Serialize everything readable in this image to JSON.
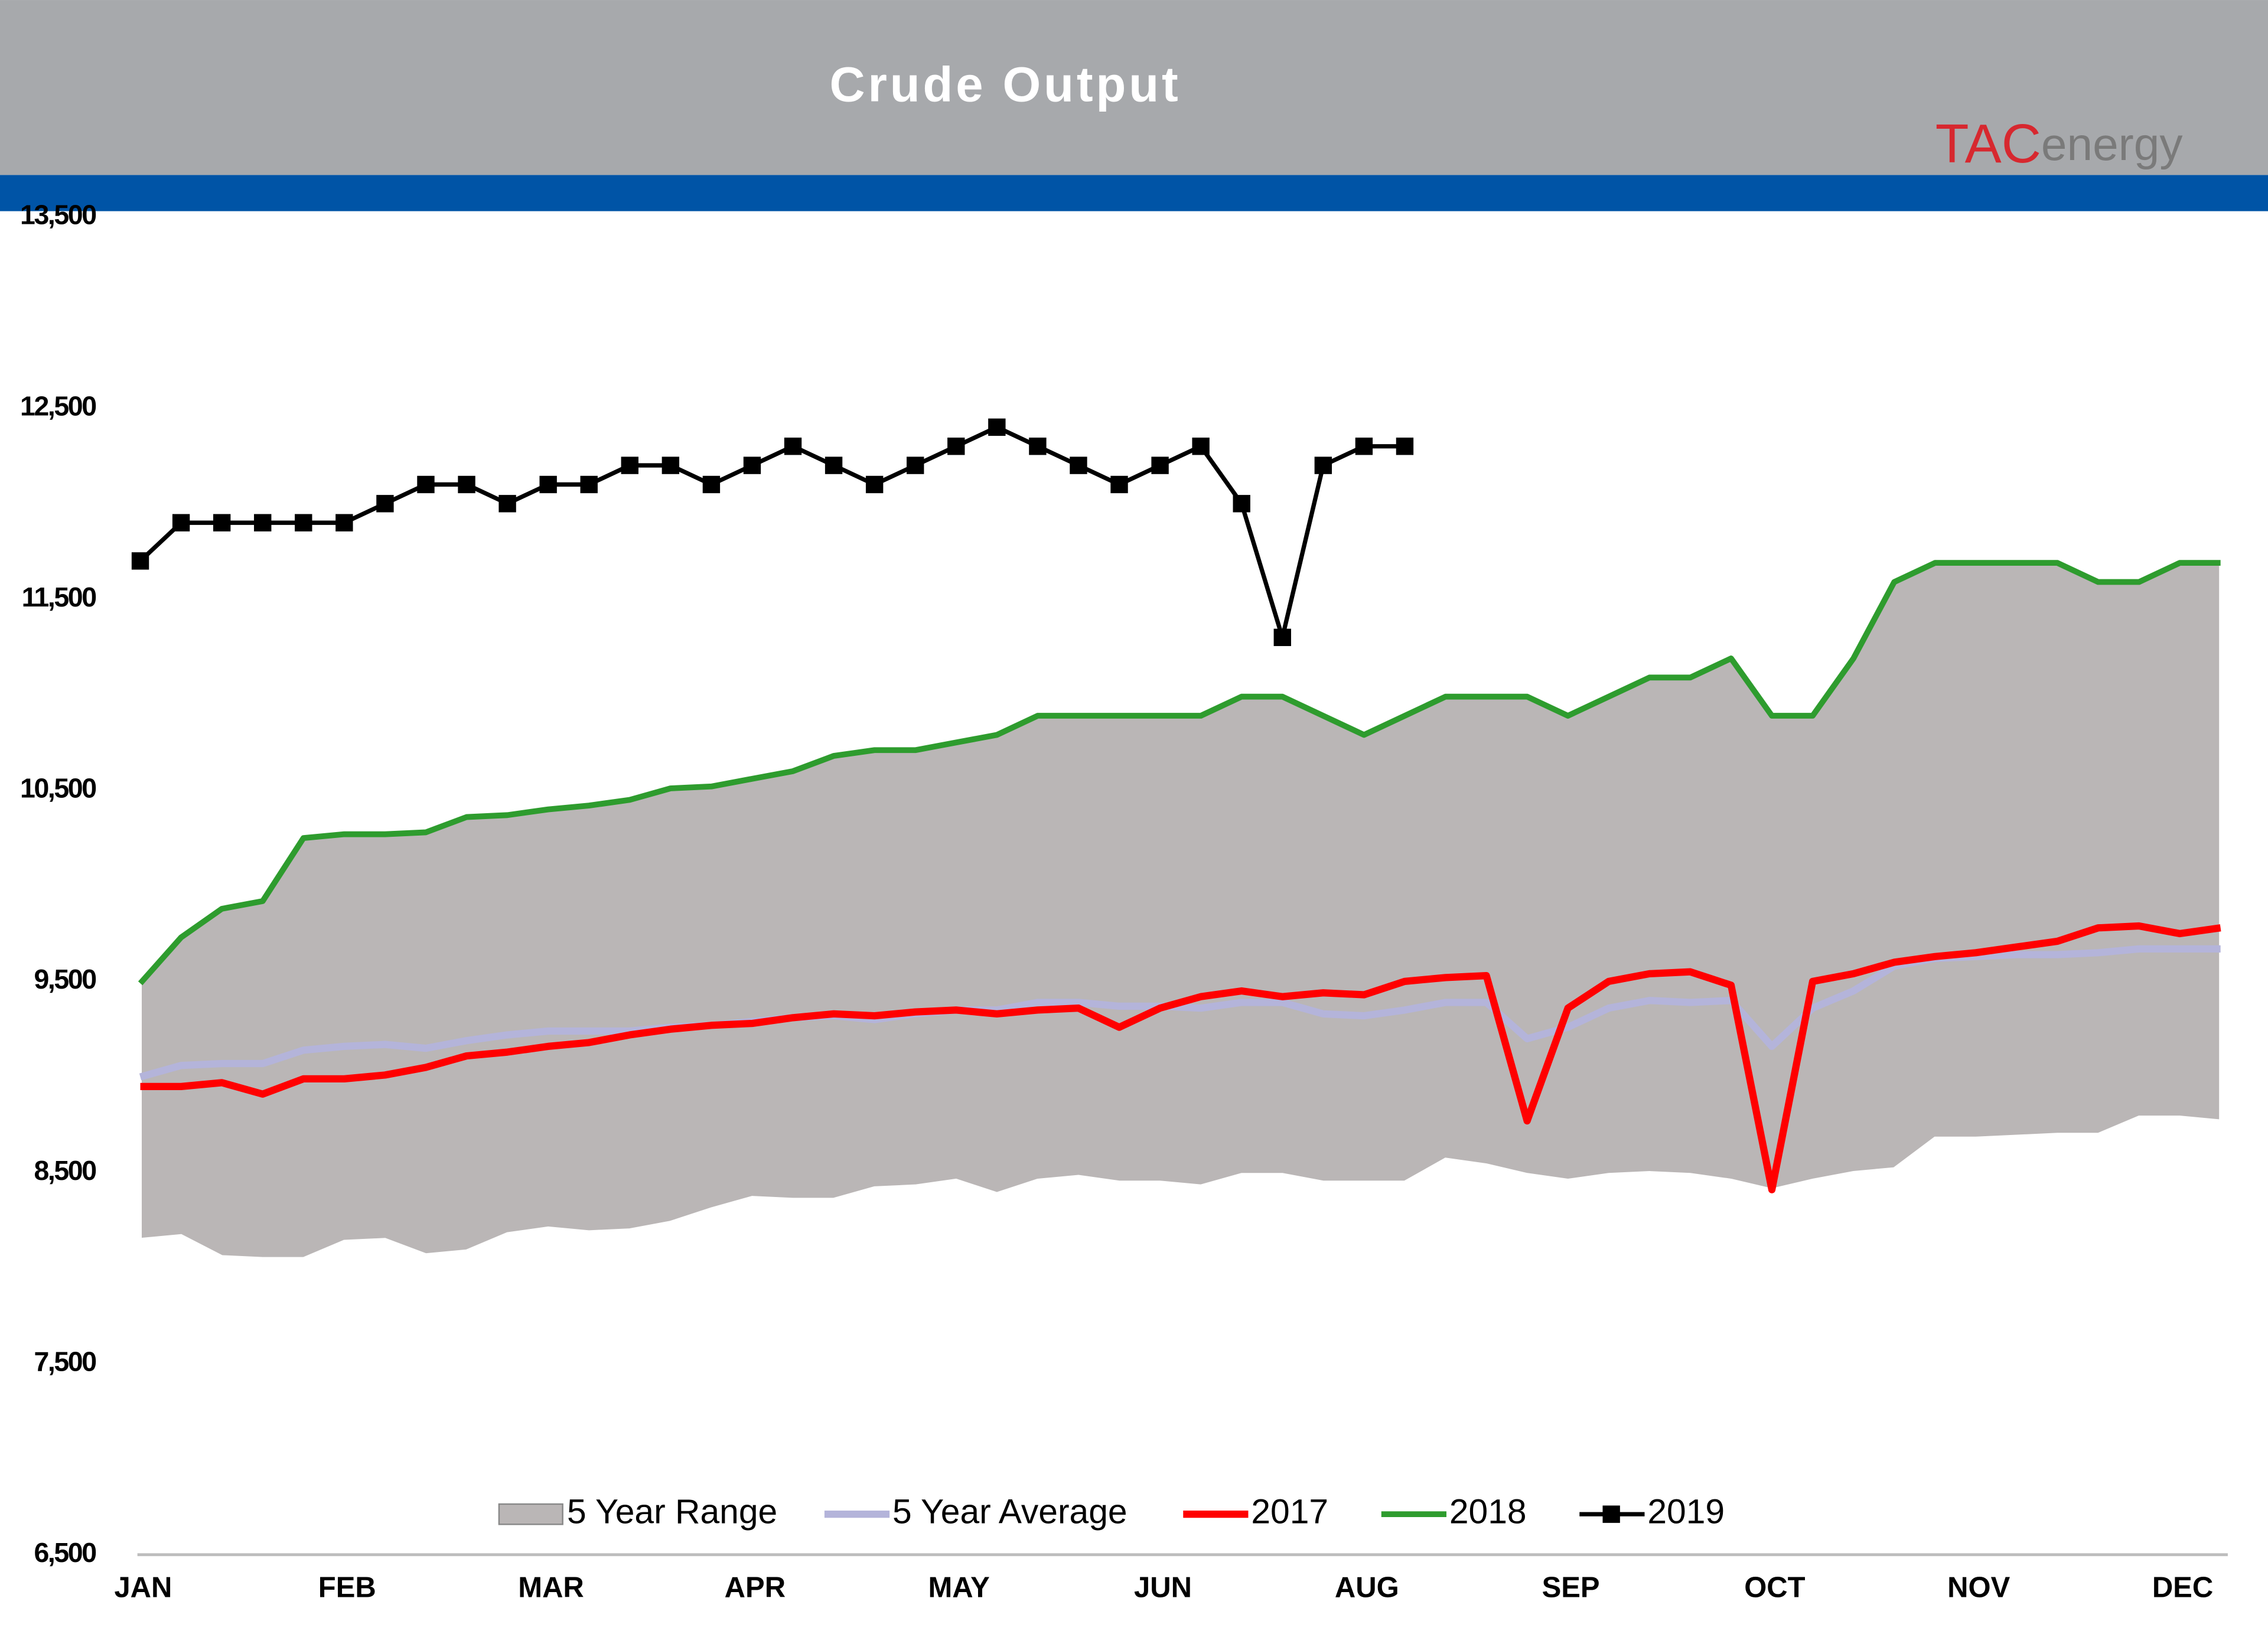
{
  "chart_data": {
    "type": "line",
    "title": "Crude Output",
    "logo_mark": "TAC",
    "logo_text": "energy",
    "categories": [
      "JAN",
      null,
      null,
      null,
      null,
      "FEB",
      null,
      null,
      null,
      null,
      "MAR",
      null,
      null,
      null,
      null,
      "APR",
      null,
      null,
      null,
      null,
      "MAY",
      null,
      null,
      null,
      null,
      "JUN",
      null,
      null,
      null,
      null,
      "AUG",
      null,
      null,
      null,
      null,
      "SEP",
      null,
      null,
      null,
      null,
      "OCT",
      null,
      null,
      null,
      null,
      "NOV",
      null,
      null,
      null,
      null,
      "DEC",
      null
    ],
    "ylim": [
      6500,
      13500
    ],
    "yticks": [
      {
        "value": 6500,
        "label": "6,500"
      },
      {
        "value": 7500,
        "label": "7,500"
      },
      {
        "value": 8500,
        "label": "8,500"
      },
      {
        "value": 9500,
        "label": "9,500"
      },
      {
        "value": 10500,
        "label": "10,500"
      },
      {
        "value": 11500,
        "label": "11,500"
      },
      {
        "value": 12500,
        "label": "12,500"
      },
      {
        "value": 13500,
        "label": "13,500"
      }
    ],
    "series": [
      {
        "name": "5 Year Range",
        "color": "#bab6b6",
        "kind": "range",
        "low": [
          8150,
          8170,
          8060,
          8050,
          8050,
          8140,
          8150,
          8070,
          8090,
          8180,
          8210,
          8190,
          8200,
          8240,
          8310,
          8370,
          8360,
          8360,
          8420,
          8430,
          8460,
          8390,
          8460,
          8480,
          8450,
          8450,
          8430,
          8490,
          8490,
          8450,
          8450,
          8450,
          8570,
          8540,
          8490,
          8460,
          8490,
          8500,
          8490,
          8460,
          8410,
          8460,
          8500,
          8520,
          8680,
          8680,
          8690,
          8700,
          8700,
          8790,
          8790,
          8770
        ],
        "high": [
          9490,
          9730,
          9880,
          9920,
          10250,
          10270,
          10270,
          10280,
          10360,
          10370,
          10400,
          10420,
          10450,
          10510,
          10520,
          10560,
          10600,
          10680,
          10710,
          10710,
          10750,
          10790,
          10890,
          10890,
          10890,
          10890,
          10890,
          10990,
          10990,
          10890,
          10790,
          10890,
          10990,
          10990,
          10990,
          10890,
          10990,
          11090,
          11090,
          11190,
          10890,
          10890,
          11190,
          11590,
          11690,
          11690,
          11690,
          11690,
          11590,
          11590,
          11690,
          11690
        ]
      },
      {
        "name": "5 Year Average",
        "color": "#b4b4da",
        "width": 5,
        "values": [
          9000,
          9060,
          9070,
          9070,
          9140,
          9160,
          9170,
          9150,
          9190,
          9220,
          9240,
          9240,
          9240,
          9260,
          9270,
          9290,
          9310,
          9320,
          9300,
          9330,
          9350,
          9350,
          9390,
          9390,
          9370,
          9370,
          9360,
          9390,
          9390,
          9330,
          9320,
          9350,
          9390,
          9390,
          9200,
          9260,
          9360,
          9400,
          9390,
          9400,
          9160,
          9360,
          9450,
          9580,
          9620,
          9630,
          9640,
          9640,
          9650,
          9670,
          9670,
          9670
        ]
      },
      {
        "name": "2017",
        "color": "#ff0000",
        "width": 5,
        "values": [
          8950,
          8950,
          8970,
          8910,
          8990,
          8990,
          9010,
          9050,
          9110,
          9130,
          9160,
          9180,
          9220,
          9250,
          9270,
          9280,
          9310,
          9330,
          9320,
          9340,
          9350,
          9330,
          9350,
          9360,
          9260,
          9360,
          9420,
          9450,
          9420,
          9440,
          9430,
          9500,
          9520,
          9530,
          8770,
          9360,
          9500,
          9540,
          9550,
          9480,
          8410,
          9500,
          9540,
          9600,
          9630,
          9650,
          9680,
          9710,
          9780,
          9790,
          9750,
          9780
        ]
      },
      {
        "name": "2018",
        "color": "#2e9c2e",
        "width": 4,
        "values": [
          9490,
          9730,
          9880,
          9920,
          10250,
          10270,
          10270,
          10280,
          10360,
          10370,
          10400,
          10420,
          10450,
          10510,
          10520,
          10560,
          10600,
          10680,
          10710,
          10710,
          10750,
          10790,
          10890,
          10890,
          10890,
          10890,
          10890,
          10990,
          10990,
          10890,
          10790,
          10890,
          10990,
          10990,
          10990,
          10890,
          10990,
          11090,
          11090,
          11190,
          10890,
          10890,
          11190,
          11590,
          11690,
          11690,
          11690,
          11690,
          11590,
          11590,
          11690,
          11690
        ]
      },
      {
        "name": "2019",
        "color": "#000000",
        "width": 3,
        "marker": "square",
        "values": [
          11700,
          11900,
          11900,
          11900,
          11900,
          11900,
          12000,
          12100,
          12100,
          12000,
          12100,
          12100,
          12200,
          12200,
          12100,
          12200,
          12300,
          12200,
          12100,
          12200,
          12300,
          12400,
          12300,
          12200,
          12100,
          12200,
          12300,
          12000,
          11300,
          12200,
          12300,
          12300,
          null,
          null,
          null,
          null,
          null,
          null,
          null,
          null,
          null,
          null,
          null,
          null,
          null,
          null,
          null,
          null,
          null,
          null,
          null,
          null
        ]
      }
    ]
  }
}
